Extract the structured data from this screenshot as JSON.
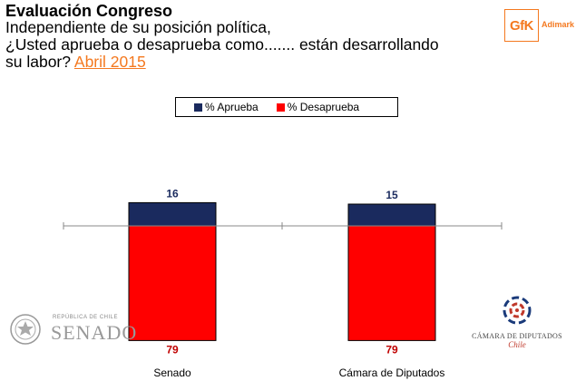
{
  "header": {
    "title": "Evaluación Congreso",
    "subtitle_lines": [
      "Independiente de su posición política,",
      "¿Usted aprueba o desaprueba como....... están desarrollando",
      "su labor? "
    ],
    "date": "Abril 2015"
  },
  "branding": {
    "gfk_logo": "GfK",
    "gfk_sub": "Adimark"
  },
  "logos": {
    "senado_small": "REPÚBLICA DE CHILE",
    "senado": "SENADO",
    "camara": "CÁMARA DE DIPUTADOS",
    "camara_chile": "Chile"
  },
  "colors": {
    "aprueba": "#1a2a5e",
    "desaprueba": "#ff0000",
    "axis": "#888888"
  },
  "chart_data": {
    "type": "bar",
    "stacked": true,
    "categories": [
      "Senado",
      "Cámara de Diputados"
    ],
    "series": [
      {
        "name": "% Aprueba",
        "values": [
          16,
          15
        ]
      },
      {
        "name": "% Desaprueba",
        "values": [
          79,
          79
        ]
      }
    ],
    "legend": "top-center",
    "grid": false
  }
}
